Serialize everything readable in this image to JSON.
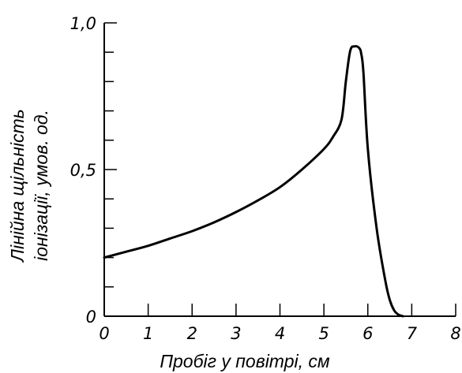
{
  "chart_data": {
    "type": "line",
    "title": "",
    "xlabel": "Пробіг у повітрі, см",
    "ylabel_line1": "Лінійна щільність",
    "ylabel_line2": "іонізації, умов. од.",
    "xlim": [
      0,
      8
    ],
    "ylim": [
      0,
      1.0
    ],
    "x_ticks": [
      0,
      1,
      2,
      3,
      4,
      5,
      6,
      7,
      8
    ],
    "x_tick_labels": [
      "0",
      "1",
      "2",
      "3",
      "4",
      "5",
      "6",
      "7",
      "8"
    ],
    "y_ticks": [
      0,
      0.1,
      0.2,
      0.3,
      0.4,
      0.5,
      0.6,
      0.7,
      0.8,
      0.9,
      1.0
    ],
    "y_tick_labels": [
      "0",
      "",
      "",
      "",
      "",
      "0,5",
      "",
      "",
      "",
      "",
      "1,0"
    ],
    "grid": false,
    "series": [
      {
        "x": [
          0,
          0.5,
          1.0,
          1.5,
          2.0,
          2.5,
          3.0,
          3.5,
          4.0,
          4.5,
          5.0,
          5.2,
          5.4,
          5.5,
          5.6,
          5.7,
          5.8,
          5.85,
          5.9,
          6.0,
          6.2,
          6.4,
          6.5,
          6.6,
          6.7,
          6.8
        ],
        "y": [
          0.2,
          0.22,
          0.24,
          0.265,
          0.29,
          0.32,
          0.355,
          0.395,
          0.44,
          0.5,
          0.57,
          0.61,
          0.67,
          0.8,
          0.905,
          0.92,
          0.915,
          0.895,
          0.83,
          0.57,
          0.3,
          0.12,
          0.055,
          0.02,
          0.005,
          0.0
        ]
      }
    ]
  }
}
